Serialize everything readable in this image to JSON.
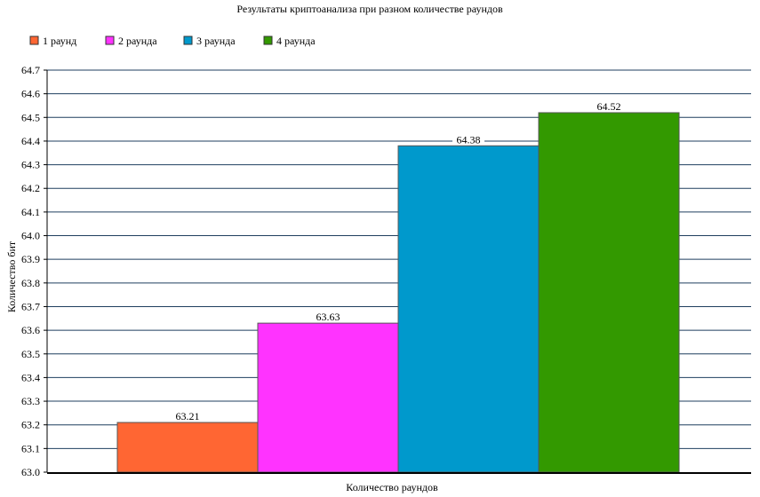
{
  "chart_data": {
    "type": "bar",
    "title": "Результаты криптоанализа при разном количестве раундов",
    "xlabel": "Количество раундов",
    "ylabel": "Количество бит",
    "ylim": [
      63.0,
      64.7
    ],
    "ytick_step": 0.1,
    "yticks": [
      "63.0",
      "63.1",
      "63.2",
      "63.3",
      "63.4",
      "63.5",
      "63.6",
      "63.7",
      "63.8",
      "63.9",
      "64.0",
      "64.1",
      "64.2",
      "64.3",
      "64.4",
      "64.5",
      "64.6",
      "64.7"
    ],
    "grid": true,
    "legend_position": "top-left",
    "series": [
      {
        "name": "1 раунд",
        "value": 63.21,
        "label": "63.21",
        "color": "#ff6633"
      },
      {
        "name": "2 раунда",
        "value": 63.63,
        "label": "63.63",
        "color": "#ff33ff"
      },
      {
        "name": "3 раунда",
        "value": 64.38,
        "label": "64.38",
        "color": "#0099cc"
      },
      {
        "name": "4 раунда",
        "value": 64.52,
        "label": "64.52",
        "color": "#339900"
      }
    ]
  }
}
